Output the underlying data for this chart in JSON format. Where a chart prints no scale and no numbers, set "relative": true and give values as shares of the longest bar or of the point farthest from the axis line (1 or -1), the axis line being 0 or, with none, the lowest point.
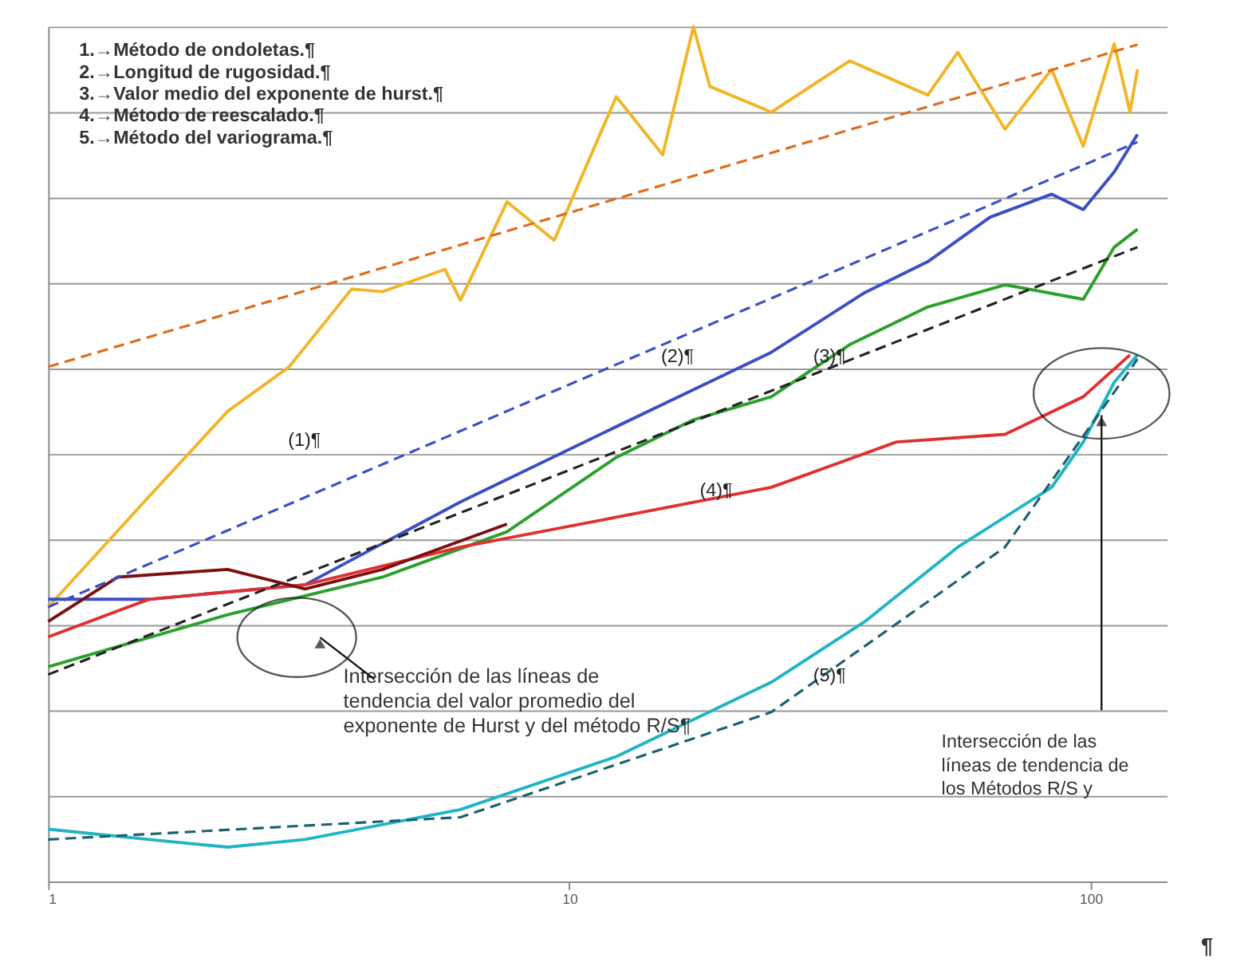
{
  "chart_data": {
    "type": "line",
    "relative": true,
    "log": "x",
    "xlim": [
      1,
      140
    ],
    "xticks": [
      1,
      10,
      100
    ],
    "grid": "y",
    "line_style": "solid",
    "marker": "none",
    "series": [
      {
        "color": "#f2b526",
        "x": [
          1,
          1.56,
          2.21,
          2.9,
          3.82,
          4.38,
          5.77,
          6.18,
          7.59,
          9.35,
          12.3,
          15.1,
          17.3,
          18.6,
          24.4,
          34.5,
          48.7,
          55.6,
          68.5,
          84.2,
          96.8,
          111,
          119,
          123
        ],
        "values": [
          0.321,
          0.45,
          0.55,
          0.602,
          0.693,
          0.69,
          0.716,
          0.68,
          0.795,
          0.75,
          0.918,
          0.85,
          1.0,
          0.93,
          0.9,
          0.96,
          0.92,
          0.97,
          0.88,
          0.95,
          0.86,
          0.98,
          0.9,
          0.95
        ]
      },
      {
        "color": "#3b4fc2",
        "x": [
          1,
          1.56,
          3.11,
          6.18,
          12.3,
          24.4,
          36.9,
          48.7,
          64.1,
          84.2,
          96.8,
          111,
          123
        ],
        "values": [
          0.33,
          0.33,
          0.347,
          0.444,
          0.532,
          0.619,
          0.689,
          0.725,
          0.777,
          0.804,
          0.786,
          0.83,
          0.874
        ]
      },
      {
        "color": "#2ca02c",
        "x": [
          1,
          2.21,
          4.38,
          7.59,
          12.3,
          17.3,
          24.4,
          34.5,
          48.7,
          68.5,
          96.8,
          111,
          123
        ],
        "values": [
          0.251,
          0.312,
          0.356,
          0.409,
          0.496,
          0.54,
          0.567,
          0.628,
          0.672,
          0.698,
          0.681,
          0.742,
          0.763
        ]
      },
      {
        "color": "#e03030",
        "x": [
          1,
          1.56,
          3.11,
          6.18,
          12.3,
          24.4,
          42.4,
          68.5,
          96.8,
          119
        ],
        "values": [
          0.286,
          0.33,
          0.347,
          0.391,
          0.426,
          0.461,
          0.514,
          0.523,
          0.567,
          0.616
        ]
      },
      {
        "color": "#7a1010",
        "x": [
          1,
          1.36,
          2.21,
          3.11,
          4.38,
          7.59
        ],
        "values": [
          0.304,
          0.356,
          0.365,
          0.342,
          0.365,
          0.418
        ]
      },
      {
        "color": "#22b4c4",
        "x": [
          1,
          1.56,
          2.21,
          3.11,
          6.18,
          12.3,
          24.4,
          36.9,
          55.6,
          84.2,
          96.8,
          111,
          123
        ],
        "values": [
          0.061,
          0.049,
          0.04,
          0.049,
          0.084,
          0.146,
          0.233,
          0.304,
          0.391,
          0.461,
          0.514,
          0.584,
          0.616
        ]
      },
      {
        "color": "#e06a1a",
        "line_style": "dashed",
        "x": [
          1,
          123
        ],
        "values": [
          0.602,
          0.979
        ]
      },
      {
        "color": "#3b4fc2",
        "line_style": "dashed",
        "x": [
          1,
          123
        ],
        "values": [
          0.321,
          0.865
        ]
      },
      {
        "color": "#222222",
        "line_style": "dashed",
        "x": [
          1,
          123
        ],
        "values": [
          0.242,
          0.742
        ]
      },
      {
        "color": "#1a6070",
        "line_style": "dashed",
        "x": [
          1,
          6.18,
          24.4,
          68.5,
          123
        ],
        "values": [
          0.049,
          0.075,
          0.198,
          0.391,
          0.611
        ]
      }
    ],
    "annotations": [
      "1.→Método de ondoletas.¶",
      "2.→Longitud de rugosidad.¶",
      "3.→Valor medio del exponente de hurst.¶",
      "4.→Método de reescalado.¶",
      "5.→Método del variograma.¶",
      "(1)¶",
      "(2)¶",
      "(3)¶",
      "(4)¶",
      "(5)¶",
      "Intersección de las líneas de tendencia del valor promedio del exponente de Hurst y del método R/S¶",
      "Intersección de las líneas de tendencia de los Métodos R/S y",
      "¶"
    ]
  }
}
